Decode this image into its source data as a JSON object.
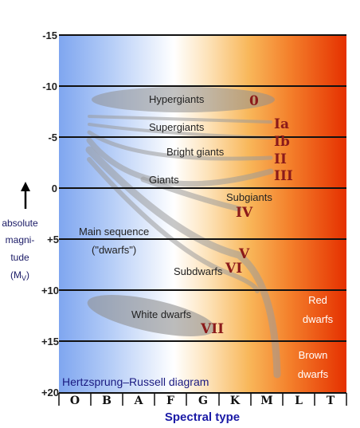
{
  "figure": {
    "caption": "Hertzsprung–Russell diagram",
    "y_axis": {
      "line1": "absolute",
      "line2": "magni-",
      "line3": "tude",
      "symbol": "(M",
      "symbol_sub": "V",
      "symbol_close": ")",
      "ticks": [
        "-15",
        "-10",
        "-5",
        "0",
        "+5",
        "+10",
        "+15",
        "+20"
      ]
    },
    "x_axis": {
      "title": "Spectral type",
      "classes": [
        "O",
        "B",
        "A",
        "F",
        "G",
        "K",
        "M",
        "L",
        "T"
      ]
    },
    "regions": {
      "hypergiants": "Hypergiants",
      "supergiants": "Supergiants",
      "bright_giants": "Bright giants",
      "giants": "Giants",
      "subgiants": "Subgiants",
      "main_sequence_1": "Main sequence",
      "main_sequence_2": "(\"dwarfs\")",
      "subdwarfs": "Subdwarfs",
      "white_dwarfs": "White dwarfs",
      "red_dwarfs_1": "Red",
      "red_dwarfs_2": "dwarfs",
      "brown_dwarfs_1": "Brown",
      "brown_dwarfs_2": "dwarfs"
    },
    "luminosity_classes": {
      "c0": "0",
      "cIa": "Ia",
      "cIb": "Ib",
      "cII": "II",
      "cIII": "III",
      "cIV": "IV",
      "cV": "V",
      "cVI": "VI",
      "cVII": "VII"
    },
    "colors": {
      "hot": "#7fa6f0",
      "mid": "#ffffff",
      "warm": "#f7b048",
      "cool": "#f25a1a",
      "coolest": "#e83000",
      "luminosity_class": "#8b1a1a",
      "axis_title": "#1a1aa6"
    }
  }
}
